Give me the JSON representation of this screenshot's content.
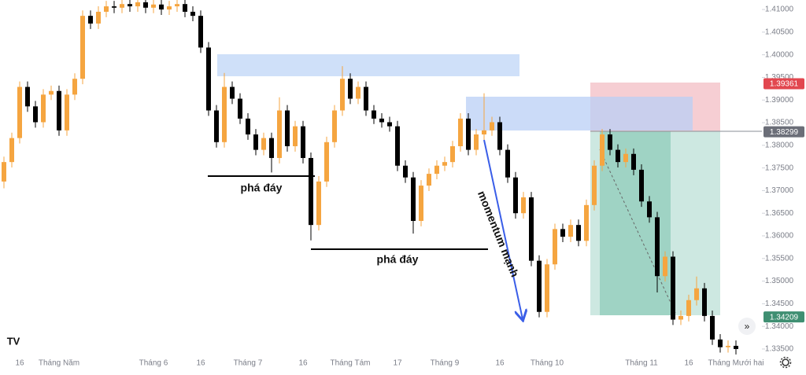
{
  "chart_data": {
    "type": "candlestick",
    "up_color": "#f5a540",
    "down_color": "#000000",
    "ylim": [
      1.3336,
      1.4121
    ],
    "yticks": [
      {
        "value": 1.335,
        "label": "1.33500"
      },
      {
        "value": 1.34,
        "label": "1.34000"
      },
      {
        "value": 1.345,
        "label": "1.34500"
      },
      {
        "value": 1.35,
        "label": "1.35000"
      },
      {
        "value": 1.355,
        "label": "1.35500"
      },
      {
        "value": 1.36,
        "label": "1.36000"
      },
      {
        "value": 1.365,
        "label": "1.36500"
      },
      {
        "value": 1.37,
        "label": "1.37000"
      },
      {
        "value": 1.375,
        "label": "1.37500"
      },
      {
        "value": 1.38,
        "label": "1.38000"
      },
      {
        "value": 1.385,
        "label": "1.38500"
      },
      {
        "value": 1.39,
        "label": "1.39000"
      },
      {
        "value": 1.395,
        "label": "1.39500"
      },
      {
        "value": 1.4,
        "label": "1.40000"
      },
      {
        "value": 1.405,
        "label": "1.40500"
      },
      {
        "value": 1.41,
        "label": "1.41000"
      }
    ],
    "categories": [
      null,
      null,
      "16",
      null,
      null,
      null,
      null,
      "Tháng Năm",
      null,
      null,
      null,
      null,
      null,
      null,
      null,
      null,
      null,
      null,
      null,
      "Tháng 6",
      null,
      null,
      null,
      null,
      null,
      "16",
      null,
      null,
      null,
      null,
      null,
      "Tháng 7",
      null,
      null,
      null,
      null,
      null,
      null,
      "16",
      null,
      null,
      null,
      null,
      null,
      "Tháng Tám",
      null,
      null,
      null,
      null,
      null,
      "17",
      null,
      null,
      null,
      null,
      null,
      "Tháng 9",
      null,
      null,
      null,
      null,
      null,
      null,
      "16",
      null,
      null,
      null,
      null,
      null,
      "Tháng 10",
      null,
      null,
      null,
      null,
      null,
      null,
      null,
      null,
      null,
      null,
      null,
      "Tháng 11",
      null,
      null,
      null,
      null,
      null,
      "16",
      null,
      null,
      null,
      null,
      null,
      "Tháng Mưới hai"
    ],
    "series": [
      {
        "open": [
          1.372,
          1.3763,
          1.3816,
          1.3929,
          1.3886,
          1.3851,
          1.3912,
          1.392,
          1.3833,
          1.3912,
          1.3947,
          1.4086,
          1.4069,
          1.4095,
          1.4107,
          1.4104,
          1.4112,
          1.4107,
          1.4116,
          1.4104,
          1.4111,
          1.41,
          1.4107,
          1.4112,
          1.4095,
          1.4086,
          1.4016,
          1.3877,
          1.3807,
          1.3929,
          1.3903,
          1.3859,
          1.3824,
          1.379,
          1.3816,
          1.3772,
          1.3877,
          1.3798,
          1.3842,
          1.3772,
          1.3624,
          1.372,
          1.3807,
          1.3877,
          1.3947,
          1.3903,
          1.3929,
          1.3877,
          1.3859,
          1.3851,
          1.3842,
          1.3755,
          1.3729,
          1.3633,
          1.3711,
          1.3737,
          1.3755,
          1.3763,
          1.3798,
          1.3859,
          1.379,
          1.3824,
          1.3833,
          1.3851,
          1.379,
          1.3729,
          1.365,
          1.3685,
          1.3545,
          1.3432,
          1.3537,
          1.3615,
          1.3598,
          1.3624,
          1.3589,
          1.3668,
          1.3755,
          1.3824,
          1.379,
          1.3763,
          1.3781,
          1.3746,
          1.3676,
          1.3641,
          1.3511,
          1.3554,
          1.3415,
          1.3423,
          1.3458,
          1.3484,
          1.3423,
          1.3371,
          1.3354,
          1.3357
        ],
        "high": [
          1.3775,
          1.3828,
          1.3941,
          1.3941,
          1.3898,
          1.3924,
          1.3932,
          1.3932,
          1.3924,
          1.3959,
          1.4098,
          1.4098,
          1.4107,
          1.4119,
          1.4119,
          1.4124,
          1.4124,
          1.4128,
          1.4128,
          1.4123,
          1.4123,
          1.4119,
          1.4124,
          1.4124,
          1.4107,
          1.4098,
          1.4028,
          1.3889,
          1.396,
          1.3941,
          1.3915,
          1.3871,
          1.3836,
          1.3828,
          1.3828,
          1.3906,
          1.3889,
          1.3854,
          1.3854,
          1.3784,
          1.3732,
          1.3819,
          1.3889,
          1.3975,
          1.3959,
          1.3941,
          1.3941,
          1.3889,
          1.3871,
          1.3863,
          1.3854,
          1.3767,
          1.3741,
          1.3723,
          1.3749,
          1.3767,
          1.3775,
          1.381,
          1.3871,
          1.3871,
          1.3836,
          1.3915,
          1.3863,
          1.3863,
          1.3802,
          1.3741,
          1.3697,
          1.3697,
          1.3557,
          1.3549,
          1.3627,
          1.3627,
          1.3636,
          1.3636,
          1.368,
          1.3767,
          1.3836,
          1.3836,
          1.3802,
          1.3793,
          1.3793,
          1.3758,
          1.3688,
          1.3653,
          1.3566,
          1.3566,
          1.3435,
          1.347,
          1.351,
          1.3496,
          1.3435,
          1.3383,
          1.3369,
          1.3369
        ],
        "low": [
          1.3705,
          1.3751,
          1.3804,
          1.3874,
          1.3839,
          1.3839,
          1.39,
          1.3821,
          1.3821,
          1.39,
          1.3935,
          1.4057,
          1.4057,
          1.4083,
          1.4092,
          1.4092,
          1.4095,
          1.4095,
          1.4092,
          1.4092,
          1.4088,
          1.4088,
          1.4095,
          1.4083,
          1.4074,
          1.4004,
          1.3865,
          1.3795,
          1.3795,
          1.3891,
          1.3847,
          1.3812,
          1.3778,
          1.3778,
          1.374,
          1.376,
          1.3786,
          1.3786,
          1.376,
          1.359,
          1.3612,
          1.3708,
          1.3795,
          1.3865,
          1.3891,
          1.3891,
          1.3865,
          1.3847,
          1.3839,
          1.383,
          1.3743,
          1.3717,
          1.3605,
          1.3621,
          1.3699,
          1.3725,
          1.3743,
          1.3751,
          1.3786,
          1.3778,
          1.3778,
          1.3812,
          1.3821,
          1.3778,
          1.3717,
          1.3638,
          1.3638,
          1.3533,
          1.342,
          1.342,
          1.3525,
          1.3586,
          1.3586,
          1.3577,
          1.3577,
          1.3656,
          1.3743,
          1.3778,
          1.3751,
          1.3751,
          1.3734,
          1.3664,
          1.3629,
          1.3475,
          1.3499,
          1.3403,
          1.3403,
          1.3411,
          1.3446,
          1.3411,
          1.3359,
          1.3342,
          1.3342,
          1.3338
        ],
        "close": [
          1.3763,
          1.3816,
          1.3929,
          1.3886,
          1.3851,
          1.3912,
          1.392,
          1.3833,
          1.3912,
          1.3947,
          1.4086,
          1.4069,
          1.4095,
          1.4107,
          1.4104,
          1.4112,
          1.4107,
          1.4116,
          1.4104,
          1.4111,
          1.41,
          1.4107,
          1.4112,
          1.4095,
          1.4086,
          1.4016,
          1.3877,
          1.3807,
          1.3929,
          1.3903,
          1.3859,
          1.3824,
          1.379,
          1.3816,
          1.3772,
          1.3877,
          1.3798,
          1.3842,
          1.3772,
          1.3624,
          1.372,
          1.3807,
          1.3877,
          1.3947,
          1.3903,
          1.3929,
          1.3877,
          1.3859,
          1.3851,
          1.3842,
          1.3755,
          1.3729,
          1.3633,
          1.3711,
          1.3737,
          1.3755,
          1.3763,
          1.3798,
          1.3859,
          1.379,
          1.3824,
          1.3833,
          1.3851,
          1.379,
          1.3729,
          1.365,
          1.3685,
          1.3545,
          1.3432,
          1.3537,
          1.3615,
          1.3598,
          1.3624,
          1.3589,
          1.3668,
          1.3755,
          1.3824,
          1.379,
          1.3763,
          1.3781,
          1.3746,
          1.3676,
          1.3641,
          1.3511,
          1.3554,
          1.3415,
          1.3423,
          1.3458,
          1.3484,
          1.3423,
          1.3371,
          1.3354,
          1.3357,
          1.335
        ]
      }
    ],
    "price_tags": [
      {
        "value": 1.39361,
        "color": "#e2474f"
      },
      {
        "value": 1.38299,
        "color": "#6b6e78"
      },
      {
        "value": 1.34209,
        "color": "#3f8f72"
      }
    ],
    "annotations": [
      "phá đáy",
      "phá đáy",
      "momentum mạnh"
    ]
  }
}
